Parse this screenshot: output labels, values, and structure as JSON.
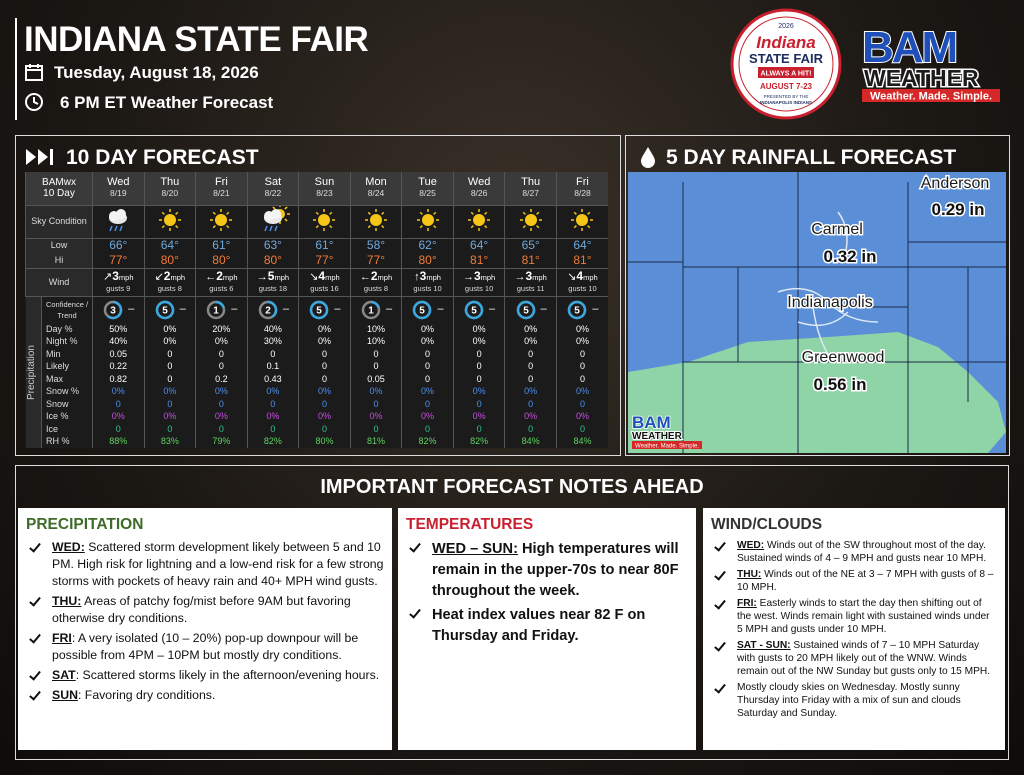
{
  "header": {
    "title": "INDIANA STATE FAIR",
    "date": "Tuesday, August 18, 2026",
    "subtitle": "6 PM ET Weather Forecast"
  },
  "fair_logo": {
    "year": "2026",
    "name": "Indiana",
    "fair": "STATE FAIR",
    "tagline": "ALWAYS A HIT!",
    "dates": "AUGUST 7-23",
    "presented": "PRESENTED BY THE",
    "sponsor": "INDIANAPOLIS INDIANS"
  },
  "bam_logo": {
    "mark": "BAM",
    "word": "WEATHER",
    "slogan": "Weather. Made. Simple."
  },
  "forecast": {
    "title": "10 DAY FORECAST",
    "corner": [
      "BAMwx",
      "10 Day"
    ],
    "group_label": "Precipitation",
    "row_labels": {
      "sky": "Sky Condition",
      "low": "Low",
      "hi": "Hi",
      "wind": "Wind",
      "confidence": "Confidence / Trend",
      "day_pct": "Day %",
      "night_pct": "Night %",
      "min": "Min",
      "likely": "Likely",
      "max": "Max",
      "snow_pct": "Snow %",
      "snow": "Snow",
      "ice_pct": "Ice %",
      "ice": "Ice",
      "rh": "RH %"
    },
    "days": [
      {
        "day": "Wed",
        "date": "8/19",
        "sky": "rain",
        "low": "66°",
        "hi": "77°",
        "wind": {
          "arrow": "↗",
          "speed": "3",
          "unit": "mph",
          "gusts": "gusts 9"
        },
        "confidence": 3,
        "trend": "–",
        "day_pct": "50%",
        "night_pct": "40%",
        "min": "0.05",
        "likely": "0.22",
        "max": "0.82",
        "snow_pct": "0%",
        "snow": "0",
        "ice_pct": "0%",
        "ice": "0",
        "rh": "88%"
      },
      {
        "day": "Thu",
        "date": "8/20",
        "sky": "sun",
        "low": "64°",
        "hi": "80°",
        "wind": {
          "arrow": "↙",
          "speed": "2",
          "unit": "mph",
          "gusts": "gusts 8"
        },
        "confidence": 5,
        "trend": "–",
        "day_pct": "0%",
        "night_pct": "0%",
        "min": "0",
        "likely": "0",
        "max": "0",
        "snow_pct": "0%",
        "snow": "0",
        "ice_pct": "0%",
        "ice": "0",
        "rh": "83%"
      },
      {
        "day": "Fri",
        "date": "8/21",
        "sky": "sun",
        "low": "61°",
        "hi": "80°",
        "wind": {
          "arrow": "←",
          "speed": "2",
          "unit": "mph",
          "gusts": "gusts 6"
        },
        "confidence": 1,
        "trend": "–",
        "day_pct": "20%",
        "night_pct": "0%",
        "min": "0",
        "likely": "0",
        "max": "0.2",
        "snow_pct": "0%",
        "snow": "0",
        "ice_pct": "0%",
        "ice": "0",
        "rh": "79%"
      },
      {
        "day": "Sat",
        "date": "8/22",
        "sky": "sun_rain",
        "low": "63°",
        "hi": "80°",
        "wind": {
          "arrow": "→",
          "speed": "5",
          "unit": "mph",
          "gusts": "gusts 18"
        },
        "confidence": 2,
        "trend": "–",
        "day_pct": "40%",
        "night_pct": "30%",
        "min": "0",
        "likely": "0.1",
        "max": "0.43",
        "snow_pct": "0%",
        "snow": "0",
        "ice_pct": "0%",
        "ice": "0",
        "rh": "82%"
      },
      {
        "day": "Sun",
        "date": "8/23",
        "sky": "sun",
        "low": "61°",
        "hi": "77°",
        "wind": {
          "arrow": "↘",
          "speed": "4",
          "unit": "mph",
          "gusts": "gusts 16"
        },
        "confidence": 5,
        "trend": "–",
        "day_pct": "0%",
        "night_pct": "0%",
        "min": "0",
        "likely": "0",
        "max": "0",
        "snow_pct": "0%",
        "snow": "0",
        "ice_pct": "0%",
        "ice": "0",
        "rh": "80%"
      },
      {
        "day": "Mon",
        "date": "8/24",
        "sky": "sun",
        "low": "58°",
        "hi": "77°",
        "wind": {
          "arrow": "←",
          "speed": "2",
          "unit": "mph",
          "gusts": "gusts 8"
        },
        "confidence": 1,
        "trend": "–",
        "day_pct": "10%",
        "night_pct": "10%",
        "min": "0",
        "likely": "0",
        "max": "0.05",
        "snow_pct": "0%",
        "snow": "0",
        "ice_pct": "0%",
        "ice": "0",
        "rh": "81%"
      },
      {
        "day": "Tue",
        "date": "8/25",
        "sky": "sun",
        "low": "62°",
        "hi": "80°",
        "wind": {
          "arrow": "↑",
          "speed": "3",
          "unit": "mph",
          "gusts": "gusts 10"
        },
        "confidence": 5,
        "trend": "–",
        "day_pct": "0%",
        "night_pct": "0%",
        "min": "0",
        "likely": "0",
        "max": "0",
        "snow_pct": "0%",
        "snow": "0",
        "ice_pct": "0%",
        "ice": "0",
        "rh": "82%"
      },
      {
        "day": "Wed",
        "date": "8/26",
        "sky": "sun",
        "low": "64°",
        "hi": "81°",
        "wind": {
          "arrow": "→",
          "speed": "3",
          "unit": "mph",
          "gusts": "gusts 10"
        },
        "confidence": 5,
        "trend": "–",
        "day_pct": "0%",
        "night_pct": "0%",
        "min": "0",
        "likely": "0",
        "max": "0",
        "snow_pct": "0%",
        "snow": "0",
        "ice_pct": "0%",
        "ice": "0",
        "rh": "82%"
      },
      {
        "day": "Thu",
        "date": "8/27",
        "sky": "sun",
        "low": "65°",
        "hi": "81°",
        "wind": {
          "arrow": "→",
          "speed": "3",
          "unit": "mph",
          "gusts": "gusts 11"
        },
        "confidence": 5,
        "trend": "–",
        "day_pct": "0%",
        "night_pct": "0%",
        "min": "0",
        "likely": "0",
        "max": "0",
        "snow_pct": "0%",
        "snow": "0",
        "ice_pct": "0%",
        "ice": "0",
        "rh": "84%"
      },
      {
        "day": "Fri",
        "date": "8/28",
        "sky": "sun",
        "low": "64°",
        "hi": "81°",
        "wind": {
          "arrow": "↘",
          "speed": "4",
          "unit": "mph",
          "gusts": "gusts 10"
        },
        "confidence": 5,
        "trend": "–",
        "day_pct": "0%",
        "night_pct": "0%",
        "min": "0",
        "likely": "0",
        "max": "0",
        "snow_pct": "0%",
        "snow": "0",
        "ice_pct": "0%",
        "ice": "0",
        "rh": "84%"
      }
    ]
  },
  "rainfall": {
    "title": "5 DAY RAINFALL FORECAST",
    "places": [
      {
        "name": "Anderson",
        "amount": "0.29 in"
      },
      {
        "name": "Carmel",
        "amount": "0.32 in"
      },
      {
        "name": "Indianapolis"
      },
      {
        "name": "Greenwood",
        "amount": "0.56 in"
      }
    ]
  },
  "notes": {
    "title": "IMPORTANT FORECAST NOTES AHEAD",
    "columns": [
      {
        "heading": "PRECIPITATION",
        "items": [
          {
            "lead": "WED:",
            "text": " Scattered storm development likely between 5 and 10 PM. High risk for lightning and a low-end risk for a few strong storms with pockets of heavy rain and 40+ MPH wind gusts."
          },
          {
            "lead": "THU:",
            "text": " Areas of patchy fog/mist before 9AM but favoring otherwise dry conditions."
          },
          {
            "lead": "FRI",
            "text": ": A very isolated (10 – 20%) pop-up downpour will be possible from 4PM – 10PM but mostly dry conditions."
          },
          {
            "lead": "SAT",
            "text": ": Scattered storms likely in the afternoon/evening hours."
          },
          {
            "lead": "SUN",
            "text": ": Favoring dry conditions."
          }
        ]
      },
      {
        "heading": "TEMPERATURES",
        "items": [
          {
            "lead": "WED – SUN:",
            "text": " High temperatures will remain in the upper-70s to near 80F throughout the week."
          },
          {
            "text": "Heat index values near 82 F on Thursday and Friday."
          }
        ]
      },
      {
        "heading": "WIND/CLOUDS",
        "items": [
          {
            "lead": "WED:",
            "text": " Winds out of the SW throughout most of the day. Sustained winds of 4 – 9 MPH and gusts near 10 MPH."
          },
          {
            "lead": "THU:",
            "text": " Winds out of the NE at 3 – 7 MPH with gusts of 8 – 10 MPH."
          },
          {
            "lead": "FRI:",
            "text": " Easterly winds to start the day then shifting out of the west. Winds remain light with sustained winds under 5 MPH and gusts under 10 MPH."
          },
          {
            "lead": "SAT - SUN:",
            "text": " Sustained winds of 7 – 10 MPH Saturday with gusts to 20 MPH likely out of the WNW. Winds remain out of the NW Sunday but gusts only to 15 MPH."
          },
          {
            "text": "Mostly cloudy skies on Wednesday. Mostly sunny Thursday into Friday with a mix of sun and clouds Saturday and Sunday."
          }
        ]
      }
    ]
  }
}
